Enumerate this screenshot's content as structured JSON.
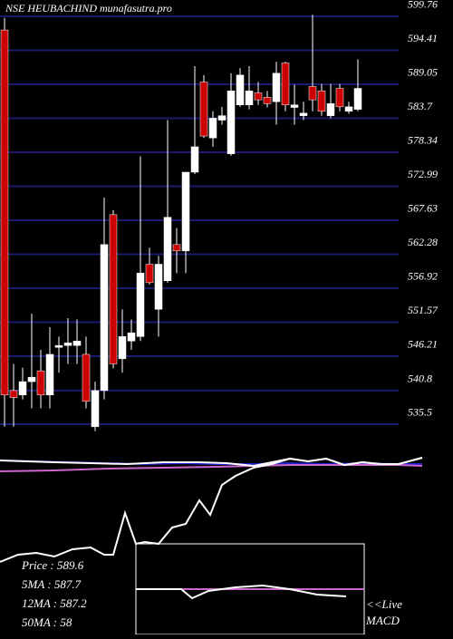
{
  "chart_data": {
    "type": "candlestick",
    "title": "NSE HEUBACHIND munafasutra.pro",
    "open": [
      597.6,
      540.8,
      540.1,
      542.2,
      543.9,
      540.1,
      547.6,
      547.9,
      547.9,
      546.5,
      535.1,
      540.8,
      568.5,
      545.8,
      548.6,
      549.3,
      560.7,
      553.6,
      558.1,
      563.8,
      562.8,
      575.2,
      589.4,
      580.6,
      583.4,
      578.1,
      585.8,
      585.8,
      587.7,
      587.0,
      586.3,
      592.4,
      585.4,
      584.1,
      588.7,
      588.0,
      584.1,
      588.4,
      584.8,
      585.1
    ],
    "high": [
      599.5,
      545.0,
      544.4,
      552.9,
      547.2,
      550.8,
      549.3,
      552.2,
      552.0,
      549.3,
      542.2,
      571.2,
      569.2,
      553.6,
      552.0,
      577.7,
      563.3,
      562.0,
      583.4,
      566.4,
      575.2,
      591.9,
      590.5,
      584.8,
      585.5,
      590.8,
      591.6,
      591.9,
      589.4,
      588.0,
      592.6,
      592.6,
      589.0,
      586.3,
      600.0,
      589.1,
      589.1,
      589.1,
      586.3,
      593.0
    ],
    "low": [
      535.1,
      535.1,
      539.4,
      538.0,
      538.0,
      538.0,
      543.6,
      545.0,
      545.0,
      538.0,
      534.4,
      539.4,
      544.3,
      543.6,
      547.2,
      548.6,
      557.5,
      549.3,
      557.8,
      559.3,
      559.3,
      574.9,
      580.6,
      579.2,
      582.7,
      577.8,
      585.5,
      585.1,
      585.8,
      585.4,
      582.7,
      584.8,
      582.7,
      583.4,
      584.8,
      584.1,
      583.7,
      584.8,
      584.4,
      584.8
    ],
    "close": [
      540.1,
      539.7,
      542.2,
      542.9,
      540.1,
      546.5,
      547.9,
      548.3,
      548.6,
      539.1,
      540.8,
      563.8,
      545.0,
      549.3,
      549.9,
      559.3,
      557.8,
      560.7,
      568.1,
      562.8,
      575.2,
      579.2,
      580.9,
      583.7,
      584.1,
      588.0,
      590.5,
      588.0,
      586.6,
      586.0,
      590.8,
      585.8,
      585.8,
      584.5,
      586.6,
      584.8,
      586.0,
      585.5,
      585.5,
      588.4
    ],
    "up_color": "#ffffff",
    "down_color": "#cc0000",
    "ylim": [
      533.7,
      600.5
    ],
    "yticks": [
      599.76,
      594.41,
      589.05,
      583.7,
      578.34,
      572.99,
      567.63,
      562.28,
      556.92,
      551.57,
      546.21,
      540.8,
      535.5
    ],
    "grid": true,
    "grid_color": "#1a1a6e",
    "legend": {
      "price": "Price  : 589.6",
      "ma5": "5MA : 587.7",
      "ma12": "12MA : 587.2",
      "ma50": "50MA : 58"
    },
    "live": "<<Live",
    "macd": "MACD"
  }
}
